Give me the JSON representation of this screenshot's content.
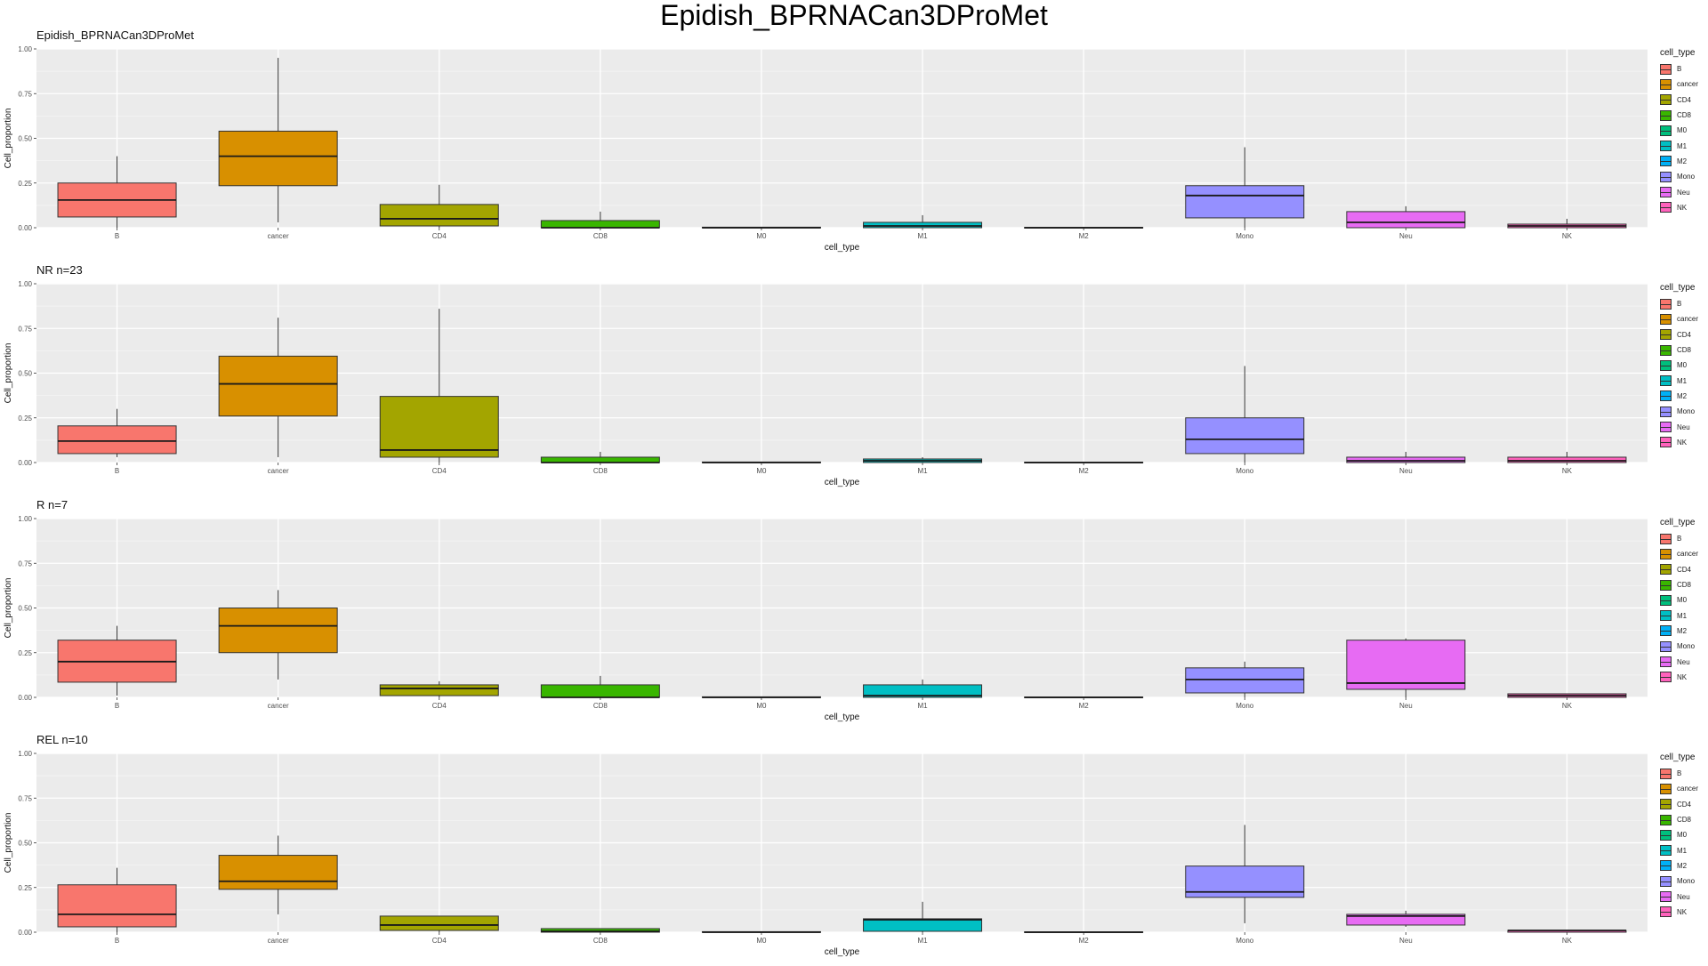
{
  "title": "Epidish_BPRNACan3DProMet",
  "legend_title": "cell_type",
  "colors": {
    "B": "#F8766D",
    "cancer": "#D89000",
    "CD4": "#A3A500",
    "CD8": "#39B600",
    "M0": "#00BF7D",
    "M1": "#00BFC4",
    "M2": "#00B0F6",
    "Mono": "#9590FF",
    "Neu": "#E76BF3",
    "NK": "#FF62BC"
  },
  "chart_data": [
    {
      "type": "boxplot",
      "title": "Epidish_BPRNACan3DProMet",
      "xlabel": "cell_type",
      "ylabel": "Cell_proportion",
      "ylim": [
        0,
        1
      ],
      "yticks": [
        "0.00",
        "0.25",
        "0.50",
        "0.75",
        "1.00"
      ],
      "categories": [
        "B",
        "cancer",
        "CD4",
        "CD8",
        "M0",
        "M1",
        "M2",
        "Mono",
        "Neu",
        "NK"
      ],
      "boxes": [
        {
          "category": "B",
          "min": 0.0,
          "q1": 0.06,
          "median": 0.155,
          "q3": 0.25,
          "max": 0.4
        },
        {
          "category": "cancer",
          "min": 0.03,
          "q1": 0.235,
          "median": 0.4,
          "q3": 0.54,
          "max": 0.95
        },
        {
          "category": "CD4",
          "min": 0.0,
          "q1": 0.01,
          "median": 0.05,
          "q3": 0.13,
          "max": 0.24
        },
        {
          "category": "CD8",
          "min": 0.0,
          "q1": 0.0,
          "median": 0.0,
          "q3": 0.04,
          "max": 0.09
        },
        {
          "category": "M0",
          "min": 0.0,
          "q1": 0.0,
          "median": 0.0,
          "q3": 0.003,
          "max": 0.003
        },
        {
          "category": "M1",
          "min": 0.0,
          "q1": 0.0,
          "median": 0.01,
          "q3": 0.03,
          "max": 0.07
        },
        {
          "category": "M2",
          "min": 0.0,
          "q1": 0.0,
          "median": 0.0,
          "q3": 0.002,
          "max": 0.002
        },
        {
          "category": "Mono",
          "min": 0.0,
          "q1": 0.055,
          "median": 0.18,
          "q3": 0.235,
          "max": 0.45
        },
        {
          "category": "Neu",
          "min": 0.0,
          "q1": 0.0,
          "median": 0.03,
          "q3": 0.09,
          "max": 0.12
        },
        {
          "category": "NK",
          "min": 0.0,
          "q1": 0.0,
          "median": 0.01,
          "q3": 0.02,
          "max": 0.05
        }
      ]
    },
    {
      "type": "boxplot",
      "title": "NR n=23",
      "xlabel": "cell_type",
      "ylabel": "Cell_proportion",
      "ylim": [
        0,
        1
      ],
      "yticks": [
        "0.00",
        "0.25",
        "0.50",
        "0.75",
        "1.00"
      ],
      "categories": [
        "B",
        "cancer",
        "CD4",
        "CD8",
        "M0",
        "M1",
        "M2",
        "Mono",
        "Neu",
        "NK"
      ],
      "boxes": [
        {
          "category": "B",
          "min": 0.03,
          "q1": 0.05,
          "median": 0.12,
          "q3": 0.205,
          "max": 0.3
        },
        {
          "category": "cancer",
          "min": 0.03,
          "q1": 0.26,
          "median": 0.44,
          "q3": 0.595,
          "max": 0.81
        },
        {
          "category": "CD4",
          "min": 0.0,
          "q1": 0.03,
          "median": 0.07,
          "q3": 0.37,
          "max": 0.86
        },
        {
          "category": "CD8",
          "min": 0.0,
          "q1": 0.0,
          "median": 0.0,
          "q3": 0.03,
          "max": 0.06
        },
        {
          "category": "M0",
          "min": 0.0,
          "q1": 0.0,
          "median": 0.0,
          "q3": 0.003,
          "max": 0.003
        },
        {
          "category": "M1",
          "min": 0.0,
          "q1": 0.0,
          "median": 0.01,
          "q3": 0.02,
          "max": 0.03
        },
        {
          "category": "M2",
          "min": 0.0,
          "q1": 0.0,
          "median": 0.0,
          "q3": 0.002,
          "max": 0.002
        },
        {
          "category": "Mono",
          "min": 0.0,
          "q1": 0.05,
          "median": 0.13,
          "q3": 0.25,
          "max": 0.54
        },
        {
          "category": "Neu",
          "min": 0.0,
          "q1": 0.0,
          "median": 0.01,
          "q3": 0.03,
          "max": 0.06
        },
        {
          "category": "NK",
          "min": 0.0,
          "q1": 0.0,
          "median": 0.01,
          "q3": 0.03,
          "max": 0.06
        }
      ]
    },
    {
      "type": "boxplot",
      "title": "R n=7",
      "xlabel": "cell_type",
      "ylabel": "Cell_proportion",
      "ylim": [
        0,
        1
      ],
      "yticks": [
        "0.00",
        "0.25",
        "0.50",
        "0.75",
        "1.00"
      ],
      "categories": [
        "B",
        "cancer",
        "CD4",
        "CD8",
        "M0",
        "M1",
        "M2",
        "Mono",
        "Neu",
        "NK"
      ],
      "boxes": [
        {
          "category": "B",
          "min": 0.01,
          "q1": 0.085,
          "median": 0.2,
          "q3": 0.32,
          "max": 0.4
        },
        {
          "category": "cancer",
          "min": 0.1,
          "q1": 0.25,
          "median": 0.4,
          "q3": 0.5,
          "max": 0.6
        },
        {
          "category": "CD4",
          "min": 0.0,
          "q1": 0.01,
          "median": 0.05,
          "q3": 0.07,
          "max": 0.09
        },
        {
          "category": "CD8",
          "min": 0.0,
          "q1": 0.0,
          "median": 0.0,
          "q3": 0.07,
          "max": 0.12
        },
        {
          "category": "M0",
          "min": 0.0,
          "q1": 0.0,
          "median": 0.0,
          "q3": 0.003,
          "max": 0.003
        },
        {
          "category": "M1",
          "min": 0.0,
          "q1": 0.0,
          "median": 0.01,
          "q3": 0.07,
          "max": 0.1
        },
        {
          "category": "M2",
          "min": 0.0,
          "q1": 0.0,
          "median": 0.0,
          "q3": 0.002,
          "max": 0.002
        },
        {
          "category": "Mono",
          "min": 0.0,
          "q1": 0.025,
          "median": 0.1,
          "q3": 0.165,
          "max": 0.2
        },
        {
          "category": "Neu",
          "min": 0.0,
          "q1": 0.045,
          "median": 0.08,
          "q3": 0.32,
          "max": 0.33
        },
        {
          "category": "NK",
          "min": 0.0,
          "q1": 0.0,
          "median": 0.01,
          "q3": 0.02,
          "max": 0.02
        }
      ]
    },
    {
      "type": "boxplot",
      "title": "REL n=10",
      "xlabel": "cell_type",
      "ylabel": "Cell_proportion",
      "ylim": [
        0,
        1
      ],
      "yticks": [
        "0.00",
        "0.25",
        "0.50",
        "0.75",
        "1.00"
      ],
      "categories": [
        "B",
        "cancer",
        "CD4",
        "CD8",
        "M0",
        "M1",
        "M2",
        "Mono",
        "Neu",
        "NK"
      ],
      "boxes": [
        {
          "category": "B",
          "min": 0.0,
          "q1": 0.03,
          "median": 0.1,
          "q3": 0.265,
          "max": 0.36
        },
        {
          "category": "cancer",
          "min": 0.1,
          "q1": 0.24,
          "median": 0.285,
          "q3": 0.43,
          "max": 0.54
        },
        {
          "category": "CD4",
          "min": 0.0,
          "q1": 0.01,
          "median": 0.04,
          "q3": 0.09,
          "max": 0.09
        },
        {
          "category": "CD8",
          "min": 0.0,
          "q1": 0.0,
          "median": 0.005,
          "q3": 0.02,
          "max": 0.02
        },
        {
          "category": "M0",
          "min": 0.0,
          "q1": 0.0,
          "median": 0.0,
          "q3": 0.003,
          "max": 0.003
        },
        {
          "category": "M1",
          "min": 0.0,
          "q1": 0.005,
          "median": 0.07,
          "q3": 0.075,
          "max": 0.17
        },
        {
          "category": "M2",
          "min": 0.0,
          "q1": 0.0,
          "median": 0.0,
          "q3": 0.002,
          "max": 0.002
        },
        {
          "category": "Mono",
          "min": 0.05,
          "q1": 0.195,
          "median": 0.225,
          "q3": 0.37,
          "max": 0.6
        },
        {
          "category": "Neu",
          "min": 0.03,
          "q1": 0.04,
          "median": 0.09,
          "q3": 0.1,
          "max": 0.12
        },
        {
          "category": "NK",
          "min": 0.0,
          "q1": 0.0,
          "median": 0.01,
          "q3": 0.01,
          "max": 0.01
        }
      ]
    }
  ]
}
